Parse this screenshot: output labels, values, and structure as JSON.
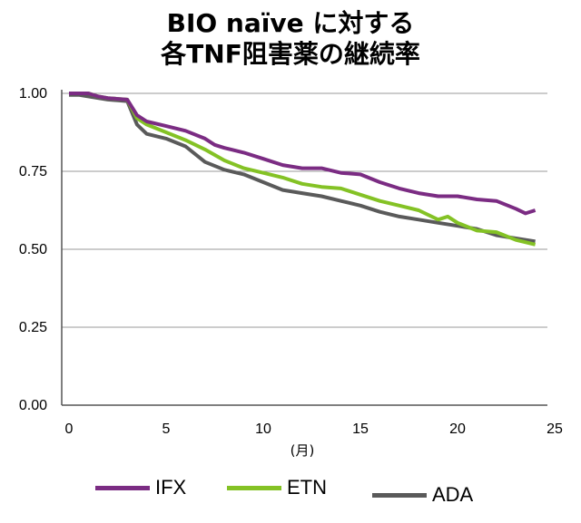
{
  "title_line1": "BIO naïve に対する",
  "title_line2": "各TNF阻害薬の継続率",
  "chart_data": {
    "type": "line",
    "xlabel": "(月)",
    "ylabel": "",
    "xlim": [
      0,
      25
    ],
    "ylim": [
      0,
      1.0
    ],
    "x_ticks": [
      "0",
      "5",
      "10",
      "15",
      "20",
      "25"
    ],
    "y_ticks": [
      "0.00",
      "0.25",
      "0.50",
      "0.75",
      "1.00"
    ],
    "grid": "horizontal",
    "legend_position": "bottom",
    "series": [
      {
        "name": "IFX",
        "color": "#7B2C83",
        "x": [
          0,
          0.5,
          1,
          1.5,
          2,
          3,
          3.5,
          4,
          5,
          6,
          7,
          7.5,
          8,
          9,
          10,
          11,
          12,
          13,
          14,
          15,
          16,
          17,
          18,
          19,
          20,
          21,
          22,
          23,
          23.5,
          24
        ],
        "y": [
          1.0,
          1.0,
          1.0,
          0.99,
          0.985,
          0.98,
          0.93,
          0.91,
          0.895,
          0.88,
          0.855,
          0.835,
          0.825,
          0.81,
          0.79,
          0.77,
          0.76,
          0.76,
          0.745,
          0.74,
          0.715,
          0.695,
          0.68,
          0.67,
          0.67,
          0.66,
          0.655,
          0.63,
          0.615,
          0.625
        ]
      },
      {
        "name": "ETN",
        "color": "#84C225",
        "x": [
          0,
          0.5,
          1,
          1.5,
          2,
          3,
          3.5,
          4,
          5,
          6,
          7,
          8,
          9,
          10,
          11,
          12,
          13,
          14,
          15,
          16,
          17,
          18,
          19,
          19.5,
          20,
          21,
          22,
          23,
          24
        ],
        "y": [
          1.0,
          1.0,
          1.0,
          0.99,
          0.985,
          0.98,
          0.92,
          0.9,
          0.875,
          0.85,
          0.82,
          0.785,
          0.76,
          0.745,
          0.73,
          0.71,
          0.7,
          0.695,
          0.675,
          0.655,
          0.64,
          0.625,
          0.595,
          0.605,
          0.585,
          0.56,
          0.555,
          0.53,
          0.515
        ]
      },
      {
        "name": "ADA",
        "color": "#5A5A5A",
        "x": [
          0,
          0.5,
          1,
          1.5,
          2,
          3,
          3.5,
          4,
          5,
          6,
          7,
          8,
          9,
          10,
          11,
          12,
          13,
          14,
          15,
          16,
          17,
          18,
          19,
          20,
          21,
          22,
          23,
          24
        ],
        "y": [
          0.995,
          0.995,
          0.99,
          0.985,
          0.98,
          0.975,
          0.9,
          0.87,
          0.855,
          0.83,
          0.78,
          0.755,
          0.74,
          0.715,
          0.69,
          0.68,
          0.67,
          0.655,
          0.64,
          0.62,
          0.605,
          0.595,
          0.585,
          0.575,
          0.565,
          0.545,
          0.535,
          0.525
        ]
      }
    ]
  }
}
